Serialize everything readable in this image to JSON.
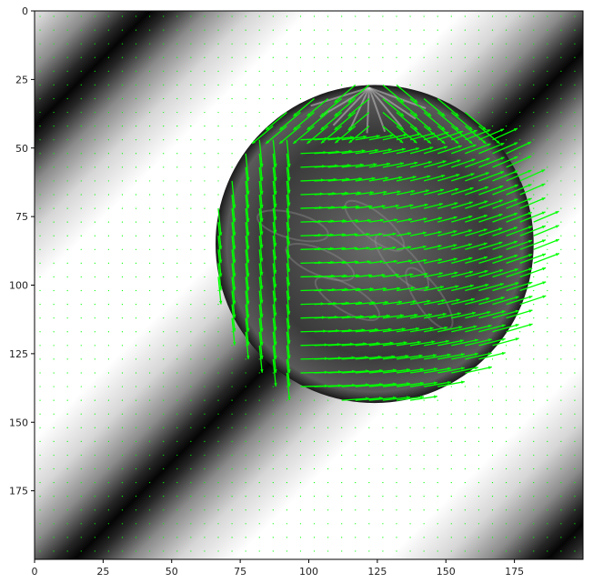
{
  "chart_data": {
    "type": "quiver",
    "description_of_background": "grayscale image: diagonal bands (top-left to bottom-right) with a textured circular object near the center",
    "xlim": [
      0,
      200
    ],
    "ylim": [
      200,
      0
    ],
    "xticks": [
      0,
      25,
      50,
      75,
      100,
      125,
      150,
      175
    ],
    "yticks": [
      0,
      25,
      50,
      75,
      100,
      125,
      150,
      175
    ],
    "xtick_labels": [
      "0",
      "25",
      "50",
      "75",
      "100",
      "125",
      "150",
      "175"
    ],
    "ytick_labels": [
      "0",
      "25",
      "50",
      "75",
      "100",
      "125",
      "150",
      "175"
    ],
    "grid": false,
    "arrow_color": "#00ff00",
    "circle": {
      "center_x": 124,
      "center_y": 85,
      "radius": 58
    },
    "arrow_grid_spacing": 5
  }
}
